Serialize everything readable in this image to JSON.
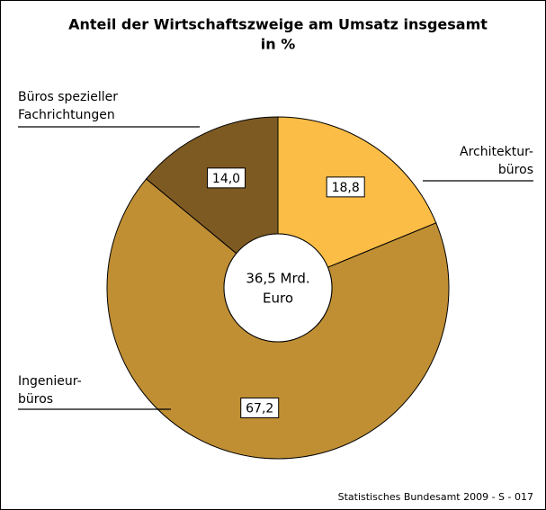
{
  "chart_data": {
    "type": "donut",
    "title": [
      "Anteil der Wirtschaftszweige am Umsatz insgesamt",
      "in %"
    ],
    "categories": [
      [
        "Architektur-",
        "büros"
      ],
      [
        "Ingenieur-",
        "büros"
      ],
      [
        "Büros spezieller",
        "Fachrichtungen"
      ]
    ],
    "values": [
      18.8,
      67.2,
      14.0
    ],
    "value_labels": [
      "18,8",
      "67,2",
      "14,0"
    ],
    "colors": [
      "#fbbd46",
      "#c08f34",
      "#7e5a23"
    ],
    "center_label": [
      "36,5 Mrd.",
      "Euro"
    ],
    "source": "Statistisches Bundesamt 2009 - S - 017"
  }
}
